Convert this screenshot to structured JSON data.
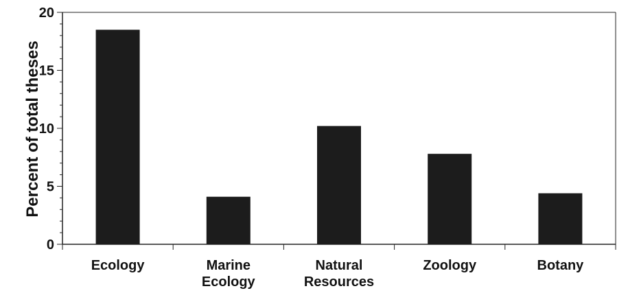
{
  "chart_data": {
    "type": "bar",
    "title": "",
    "xlabel": "",
    "ylabel": "Percent of total theses",
    "categories": [
      [
        "Ecology"
      ],
      [
        "Marine",
        "Ecology"
      ],
      [
        "Natural",
        "Resources"
      ],
      [
        "Zoology"
      ],
      [
        "Botany"
      ]
    ],
    "values": [
      18.5,
      4.1,
      10.2,
      7.8,
      4.4
    ],
    "ylim": [
      0,
      20
    ],
    "yticks": [
      0,
      5,
      10,
      15,
      20
    ],
    "grid": false,
    "bar_color": "#1c1c1c"
  }
}
